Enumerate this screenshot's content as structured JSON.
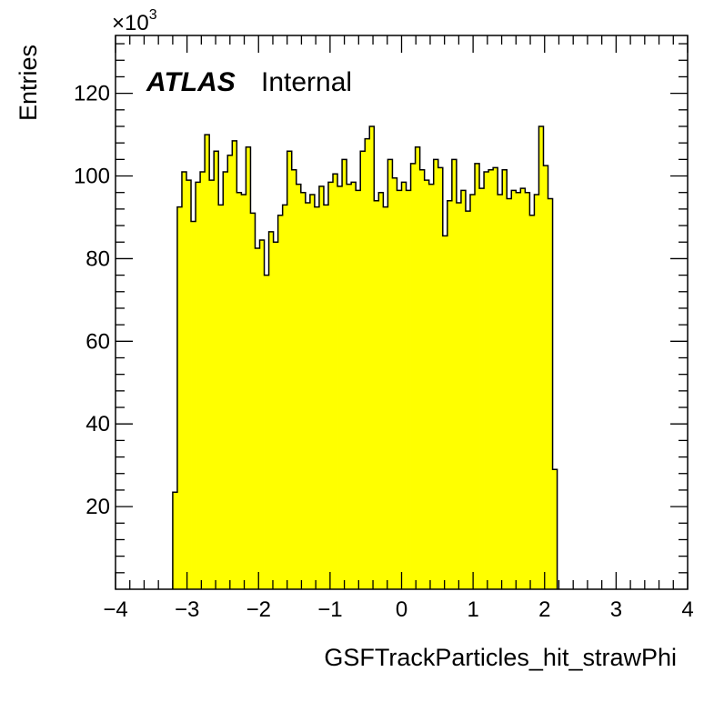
{
  "chart_data": {
    "type": "bar",
    "xlabel": "GSFTrackParticles_hit_strawPhi",
    "ylabel": "Entries",
    "y_multiplier_label": "×10",
    "y_multiplier_exp": "3",
    "xlim": [
      -4,
      4
    ],
    "ylim": [
      0,
      134
    ],
    "x_ticks": [
      "−4",
      "−3",
      "−2",
      "−1",
      "0",
      "1",
      "2",
      "3",
      "4"
    ],
    "y_ticks": [
      "20",
      "40",
      "60",
      "80",
      "100",
      "120"
    ],
    "bin_start": -3.2,
    "bin_width": 0.064,
    "values": [
      23.5,
      92.5,
      101,
      99,
      89,
      98.5,
      101,
      110,
      99,
      106,
      93,
      101,
      105,
      108.5,
      96,
      95.5,
      107,
      91,
      82.5,
      84.5,
      76,
      86.5,
      84,
      90.5,
      93,
      106,
      101.5,
      98,
      96,
      93.5,
      95.5,
      92.5,
      97.5,
      93,
      98.5,
      100.5,
      97.5,
      104,
      98,
      98.5,
      96.5,
      106,
      109,
      112,
      94,
      96,
      92.5,
      104,
      99.5,
      96.5,
      98.5,
      96.5,
      103,
      107,
      101.5,
      99,
      98,
      104,
      102,
      85.5,
      94,
      104,
      93.5,
      96.5,
      91.5,
      95.5,
      103,
      97,
      101,
      101.5,
      102,
      95.5,
      101.5,
      94.5,
      96.5,
      96,
      97,
      96,
      90.5,
      95.5,
      112,
      102.5,
      94.5,
      29
    ],
    "fill_color": "#ffff00",
    "line_color": "#000000"
  },
  "labels": {
    "atlas": "ATLAS",
    "internal": "Internal"
  }
}
